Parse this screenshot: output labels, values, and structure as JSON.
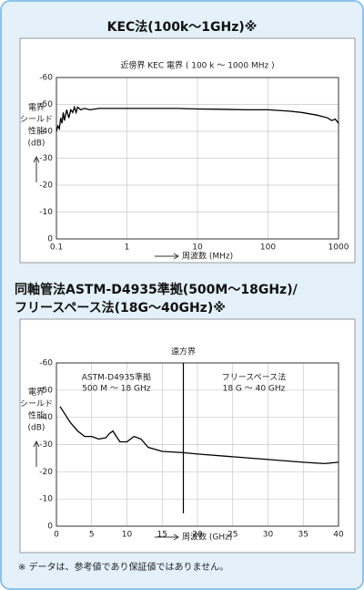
{
  "chart_data": [
    {
      "type": "line",
      "title": "KEC法(100k～1GHz)※",
      "subtitle": "近傍界 KEC 電界 ( 100 k ～ 1000 MHz )",
      "x_label": "周波数 (MHz)",
      "y_label": [
        "電界",
        "シールド",
        "性能",
        "(dB)"
      ],
      "x": [
        0.1,
        0.105,
        0.11,
        0.115,
        0.12,
        0.125,
        0.13,
        0.14,
        0.15,
        0.16,
        0.17,
        0.18,
        0.19,
        0.2,
        0.22,
        0.25,
        0.3,
        0.4,
        0.5,
        0.7,
        1,
        2,
        5,
        10,
        20,
        50,
        100,
        200,
        300,
        500,
        700,
        800,
        900,
        1000
      ],
      "values": [
        -40,
        -42,
        -41,
        -45,
        -43,
        -47,
        -44,
        -48,
        -45,
        -48,
        -47,
        -49,
        -47,
        -49,
        -48,
        -48.5,
        -48,
        -48.5,
        -48.5,
        -48.5,
        -48.5,
        -48.5,
        -48.5,
        -48.3,
        -48.2,
        -48,
        -48,
        -47.5,
        -47,
        -46,
        -45,
        -44,
        -44.5,
        -43
      ],
      "color": "#000000",
      "xscale": "log",
      "xlim": [
        0.1,
        1000
      ],
      "xticks": [
        0.1,
        1,
        10,
        100,
        1000
      ],
      "ylim": [
        0,
        -60
      ],
      "yticks": [
        0,
        -10,
        -20,
        -30,
        -40,
        -50,
        -60
      ],
      "grid": true
    },
    {
      "type": "line",
      "title": [
        "同軸管法ASTM-D4935準拠(500M～18GHz)/",
        "フリースペース法(18G～40GHz)※"
      ],
      "x_label": "周波数 (GHz)",
      "y_label": [
        "電界",
        "シールド",
        "性能",
        "(dB)"
      ],
      "far_field": {
        "label": "遠方界",
        "x": 18
      },
      "annotations": [
        "ASTM-D4935準拠",
        "500 M ～ 18 GHz",
        "フリースペース法",
        "18 G ～ 40 GHz"
      ],
      "x": [
        0.5,
        1,
        2,
        3,
        4,
        5,
        6,
        7,
        7.5,
        8,
        8.5,
        9,
        10,
        10.5,
        11,
        12,
        13,
        15,
        18,
        20,
        25,
        30,
        35,
        38,
        40
      ],
      "values": [
        -44,
        -42,
        -38,
        -35,
        -33,
        -33,
        -32,
        -32.5,
        -34,
        -35,
        -33,
        -31,
        -31,
        -32,
        -33,
        -32,
        -29,
        -27.5,
        -27,
        -26.5,
        -25.5,
        -24.5,
        -23.5,
        -23,
        -23.5
      ],
      "color": "#000000",
      "xlim": [
        0,
        40
      ],
      "xticks": [
        0,
        5,
        10,
        15,
        20,
        25,
        30,
        35,
        40
      ],
      "ylim": [
        0,
        -60
      ],
      "yticks": [
        0,
        -10,
        -20,
        -30,
        -40,
        -50,
        -60
      ],
      "grid": true
    }
  ],
  "note": "※ データは、参考値であり保証値ではありません。"
}
